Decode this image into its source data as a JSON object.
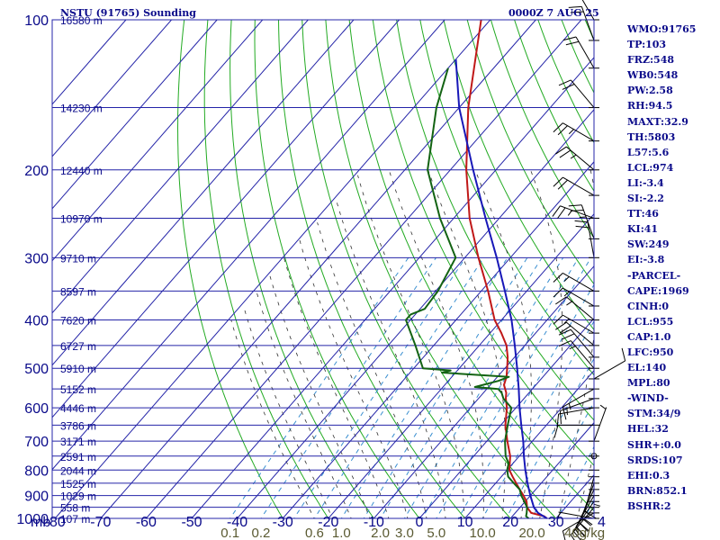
{
  "header": {
    "title": "NSTU (91765) Sounding",
    "time": "0000Z  7 AUG 25"
  },
  "stats": [
    "WMO:91765",
    "TP:103",
    "FRZ:548",
    "WB0:548",
    "PW:2.58",
    "RH:94.5",
    "MAXT:32.9",
    "TH:5803",
    "L57:5.6",
    "LCL:974",
    "LI:-3.4",
    "SI:-2.2",
    "TT:46",
    "KI:41",
    "SW:249",
    "EI:-3.8",
    "-PARCEL-",
    "CAPE:1969",
    "CINH:0",
    "LCL:955",
    "CAP:1.0",
    "LFC:950",
    "EL:140",
    "MPL:80",
    "-WIND-",
    "STM:34/9",
    "HEL:32",
    "SHR+:0.0",
    "SRDS:107",
    "EHI:0.3",
    "BRN:852.1",
    "BSHR:2"
  ],
  "colors": {
    "grid": "#2424a8",
    "dry_adiabat": "#22aa22",
    "moist_adiabat": "#303030",
    "mixing_ratio": "#3a8fd0",
    "temperature": "#c01818",
    "dewpoint": "#136313",
    "parcel": "#1818b8",
    "text": "#0a0a8a"
  },
  "chart_data": {
    "type": "line",
    "chart_kind": "skew-T log-p sounding",
    "y_axis": {
      "label": "mb",
      "scale": "log",
      "ticks": [
        100,
        200,
        300,
        400,
        500,
        600,
        700,
        800,
        900,
        1000
      ],
      "ylim": [
        1000,
        100
      ]
    },
    "x_axis": {
      "label": "",
      "ticks": [
        -80,
        -70,
        -60,
        -50,
        -40,
        -30,
        -20,
        -10,
        0,
        10,
        20,
        30,
        40
      ],
      "unit": "°C"
    },
    "height_labels": [
      {
        "p": 100,
        "label": "16580 m"
      },
      {
        "p": 150,
        "label": "14230 m"
      },
      {
        "p": 200,
        "label": "12440 m"
      },
      {
        "p": 250,
        "label": "10970 m"
      },
      {
        "p": 300,
        "label": "9710 m"
      },
      {
        "p": 350,
        "label": "8597 m"
      },
      {
        "p": 400,
        "label": "7620 m"
      },
      {
        "p": 450,
        "label": "6727 m"
      },
      {
        "p": 500,
        "label": "5910 m"
      },
      {
        "p": 550,
        "label": "5152 m"
      },
      {
        "p": 600,
        "label": "4446 m"
      },
      {
        "p": 650,
        "label": "3786 m"
      },
      {
        "p": 700,
        "label": "3171 m"
      },
      {
        "p": 750,
        "label": "2591 m"
      },
      {
        "p": 800,
        "label": "2044 m"
      },
      {
        "p": 850,
        "label": "1525 m"
      },
      {
        "p": 900,
        "label": "1029 m"
      },
      {
        "p": 950,
        "label": "558 m"
      },
      {
        "p": 1000,
        "label": "107 m"
      }
    ],
    "mixing_ratio_labels": [
      {
        "value": 0.1,
        "label": "0.1"
      },
      {
        "value": 0.2,
        "label": "0.2"
      },
      {
        "value": 0.6,
        "label": "0.6"
      },
      {
        "value": 1.0,
        "label": "1.0"
      },
      {
        "value": 2.0,
        "label": "2.0"
      },
      {
        "value": 3.0,
        "label": "3.0"
      },
      {
        "value": 5.0,
        "label": "5.0"
      },
      {
        "value": 10.0,
        "label": "10.0"
      },
      {
        "value": 20.0,
        "label": "20.0"
      },
      {
        "value": 40.0,
        "label": "40g/kg"
      }
    ],
    "series": [
      {
        "id": "temperature",
        "points": [
          [
            1000,
            28.0
          ],
          [
            990,
            27.0
          ],
          [
            975,
            23.5
          ],
          [
            950,
            21.5
          ],
          [
            925,
            20.3
          ],
          [
            900,
            18.5
          ],
          [
            875,
            16.5
          ],
          [
            850,
            14.5
          ],
          [
            825,
            12.5
          ],
          [
            800,
            10.5
          ],
          [
            750,
            8.0
          ],
          [
            700,
            4.5
          ],
          [
            650,
            1.0
          ],
          [
            600,
            -2.0
          ],
          [
            575,
            -4.0
          ],
          [
            560,
            -5.0
          ],
          [
            540,
            -7.0
          ],
          [
            520,
            -8.0
          ],
          [
            500,
            -9.5
          ],
          [
            475,
            -11.5
          ],
          [
            450,
            -14.0
          ],
          [
            425,
            -17.5
          ],
          [
            400,
            -21.5
          ],
          [
            350,
            -28.5
          ],
          [
            300,
            -37.0
          ],
          [
            250,
            -46.5
          ],
          [
            200,
            -56.5
          ],
          [
            150,
            -68.0
          ],
          [
            100,
            -82.0
          ]
        ]
      },
      {
        "id": "dewpoint",
        "points": [
          [
            1000,
            24.0
          ],
          [
            990,
            23.0
          ],
          [
            975,
            22.5
          ],
          [
            950,
            21.5
          ],
          [
            925,
            19.8
          ],
          [
            900,
            18.0
          ],
          [
            875,
            16.5
          ],
          [
            850,
            14.0
          ],
          [
            825,
            11.5
          ],
          [
            800,
            10.0
          ],
          [
            775,
            9.0
          ],
          [
            750,
            7.0
          ],
          [
            700,
            4.0
          ],
          [
            650,
            1.5
          ],
          [
            600,
            -1.0
          ],
          [
            575,
            -4.5
          ],
          [
            560,
            -6.0
          ],
          [
            550,
            -7.5
          ],
          [
            545,
            -13.0
          ],
          [
            530,
            -9.0
          ],
          [
            520,
            -7.5
          ],
          [
            510,
            -23.0
          ],
          [
            505,
            -21.5
          ],
          [
            500,
            -28.0
          ],
          [
            450,
            -34.0
          ],
          [
            400,
            -41.0
          ],
          [
            390,
            -41.0
          ],
          [
            380,
            -39.0
          ],
          [
            350,
            -39.5
          ],
          [
            300,
            -42.0
          ],
          [
            250,
            -53.0
          ],
          [
            200,
            -65.0
          ],
          [
            150,
            -75.0
          ],
          [
            125,
            -80.0
          ]
        ]
      },
      {
        "id": "parcel",
        "points": [
          [
            1000,
            28.0
          ],
          [
            975,
            25.0
          ],
          [
            950,
            23.0
          ],
          [
            900,
            20.0
          ],
          [
            850,
            17.0
          ],
          [
            800,
            14.0
          ],
          [
            750,
            11.0
          ],
          [
            700,
            8.0
          ],
          [
            650,
            4.5
          ],
          [
            600,
            0.8
          ],
          [
            550,
            -3.0
          ],
          [
            500,
            -7.3
          ],
          [
            450,
            -12.2
          ],
          [
            400,
            -17.8
          ],
          [
            350,
            -24.8
          ],
          [
            300,
            -33.0
          ],
          [
            250,
            -43.0
          ],
          [
            200,
            -55.0
          ],
          [
            150,
            -70.0
          ],
          [
            120,
            -80.0
          ]
        ]
      }
    ],
    "wind_barbs": [
      {
        "p": 1000,
        "dir": 280,
        "spd": 5
      },
      {
        "p": 975,
        "dir": 240,
        "spd": 10
      },
      {
        "p": 950,
        "dir": 220,
        "spd": 15
      },
      {
        "p": 925,
        "dir": 215,
        "spd": 20
      },
      {
        "p": 900,
        "dir": 210,
        "spd": 20
      },
      {
        "p": 875,
        "dir": 205,
        "spd": 20
      },
      {
        "p": 850,
        "dir": 200,
        "spd": 15
      },
      {
        "p": 825,
        "dir": 195,
        "spd": 10
      },
      {
        "p": 800,
        "dir": 180,
        "spd": 5
      },
      {
        "p": 750,
        "dir": 0,
        "spd": 0
      },
      {
        "p": 700,
        "dir": 20,
        "spd": 5
      },
      {
        "p": 650,
        "dir": 270,
        "spd": 10
      },
      {
        "p": 600,
        "dir": 260,
        "spd": 10
      },
      {
        "p": 575,
        "dir": 250,
        "spd": 15
      },
      {
        "p": 550,
        "dir": 240,
        "spd": 15
      },
      {
        "p": 525,
        "dir": 60,
        "spd": 10
      },
      {
        "p": 500,
        "dir": 320,
        "spd": 15
      },
      {
        "p": 475,
        "dir": 320,
        "spd": 20
      },
      {
        "p": 450,
        "dir": 310,
        "spd": 20
      },
      {
        "p": 425,
        "dir": 300,
        "spd": 15
      },
      {
        "p": 400,
        "dir": 310,
        "spd": 15
      },
      {
        "p": 375,
        "dir": 300,
        "spd": 15
      },
      {
        "p": 350,
        "dir": 300,
        "spd": 15
      },
      {
        "p": 300,
        "dir": 350,
        "spd": 20
      },
      {
        "p": 275,
        "dir": 340,
        "spd": 25
      },
      {
        "p": 250,
        "dir": 290,
        "spd": 25
      },
      {
        "p": 225,
        "dir": 300,
        "spd": 20
      },
      {
        "p": 200,
        "dir": 310,
        "spd": 25
      },
      {
        "p": 175,
        "dir": 300,
        "spd": 25
      },
      {
        "p": 150,
        "dir": 320,
        "spd": 20
      },
      {
        "p": 125,
        "dir": 330,
        "spd": 20
      },
      {
        "p": 110,
        "dir": 340,
        "spd": 20
      },
      {
        "p": 100,
        "dir": 330,
        "spd": 20
      }
    ]
  }
}
